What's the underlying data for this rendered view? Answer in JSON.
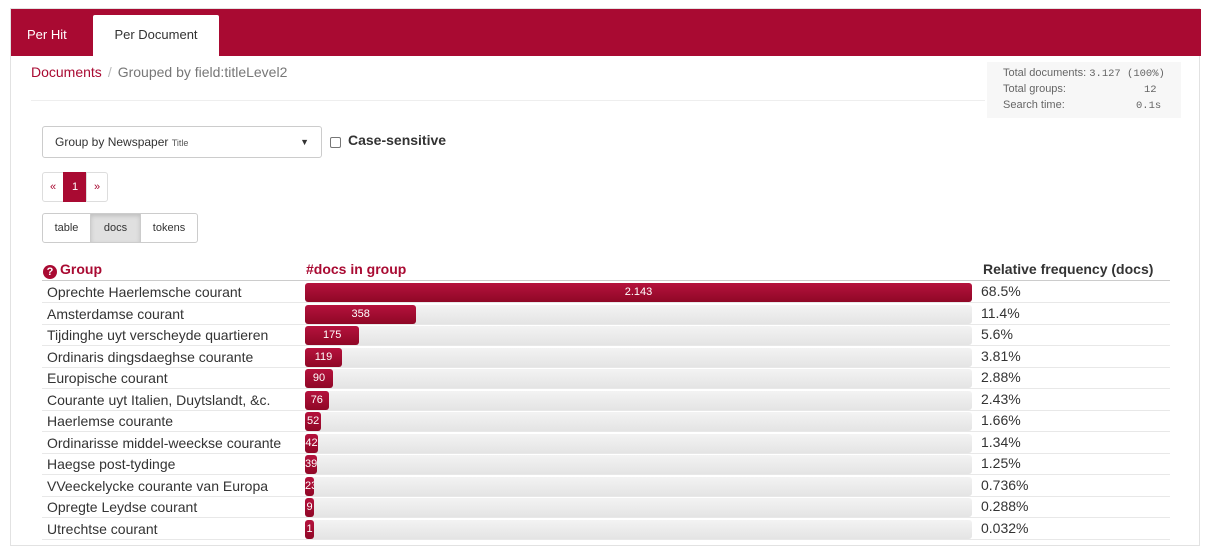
{
  "tabs": [
    {
      "label": "Per Hit",
      "active": false
    },
    {
      "label": "Per Document",
      "active": true
    }
  ],
  "breadcrumb": {
    "root": "Documents",
    "separator": "/",
    "current": "Grouped by field:titleLevel2"
  },
  "stats": {
    "total_documents_label": "Total documents:",
    "total_documents_value": "3.127 (100%)",
    "total_groups_label": "Total groups:",
    "total_groups_value": "12",
    "search_time_label": "Search time:",
    "search_time_value": "0.1s"
  },
  "group_select": {
    "label": "Group by Newspaper",
    "small": "Title"
  },
  "case_sensitive": {
    "label": "Case-sensitive",
    "checked": false
  },
  "pagination": {
    "prev": "«",
    "current": "1",
    "next": "»"
  },
  "view_buttons": [
    {
      "label": "table",
      "active": false
    },
    {
      "label": "docs",
      "active": true
    },
    {
      "label": "tokens",
      "active": false
    }
  ],
  "table": {
    "headers": {
      "group": "Group",
      "count": "#docs in group",
      "freq": "Relative frequency (docs)"
    },
    "help_icon": "question-circle-icon",
    "rows": [
      {
        "name": "Oprechte Haerlemsche courant",
        "count_label": "2.143",
        "count": 2143,
        "freq": "68.5%"
      },
      {
        "name": "Amsterdamse courant",
        "count_label": "358",
        "count": 358,
        "freq": "11.4%"
      },
      {
        "name": "Tijdinghe uyt verscheyde quartieren",
        "count_label": "175",
        "count": 175,
        "freq": "5.6%"
      },
      {
        "name": "Ordinaris dingsdaeghse courante",
        "count_label": "119",
        "count": 119,
        "freq": "3.81%"
      },
      {
        "name": "Europische courant",
        "count_label": "90",
        "count": 90,
        "freq": "2.88%"
      },
      {
        "name": "Courante uyt Italien, Duytslandt, &c.",
        "count_label": "76",
        "count": 76,
        "freq": "2.43%"
      },
      {
        "name": "Haerlemse courante",
        "count_label": "52",
        "count": 52,
        "freq": "1.66%"
      },
      {
        "name": "Ordinarisse middel-weeckse courante",
        "count_label": "42",
        "count": 42,
        "freq": "1.34%"
      },
      {
        "name": "Haegse post-tydinge",
        "count_label": "39",
        "count": 39,
        "freq": "1.25%"
      },
      {
        "name": "VVeeckelycke courante van Europa",
        "count_label": "23",
        "count": 23,
        "freq": "0.736%"
      },
      {
        "name": "Opregte Leydse courant",
        "count_label": "9",
        "count": 9,
        "freq": "0.288%"
      },
      {
        "name": "Utrechtse courant",
        "count_label": "1",
        "count": 1,
        "freq": "0.032%"
      }
    ]
  },
  "colors": {
    "brand": "#a90a32",
    "bar": "#9b0a2f"
  }
}
